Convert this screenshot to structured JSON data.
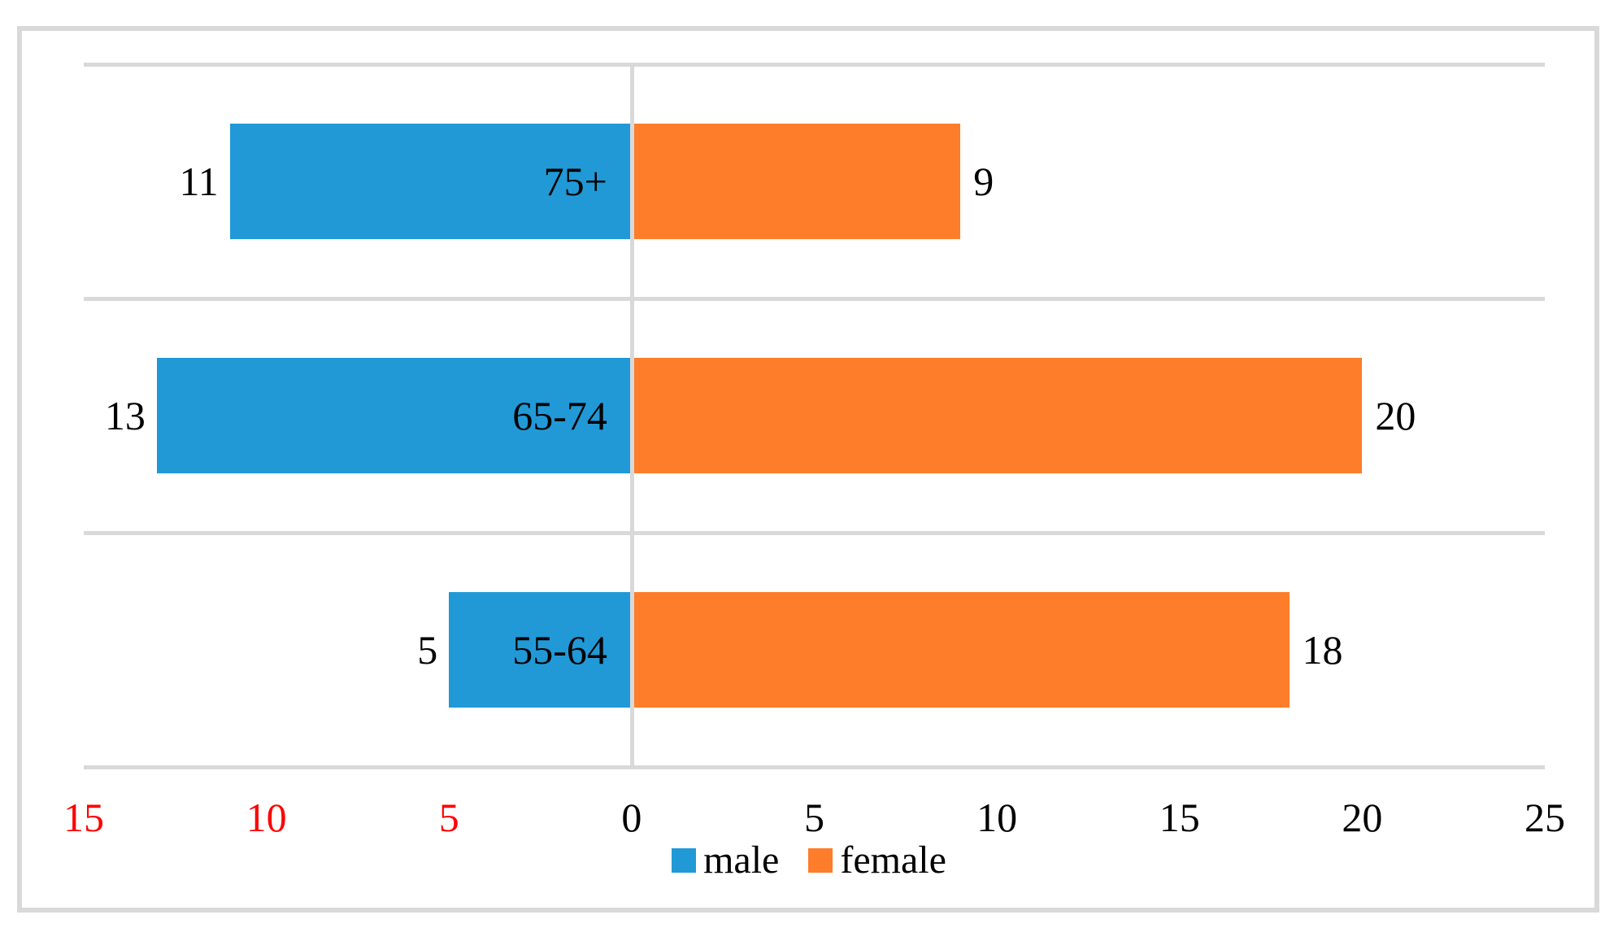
{
  "chart_data": {
    "type": "bar",
    "orientation": "horizontal-diverging",
    "title": "",
    "categories": [
      "75+",
      "65-74",
      "55-64"
    ],
    "series": [
      {
        "name": "male",
        "color": "#2199D7",
        "direction": "left",
        "values": [
          11,
          13,
          5
        ]
      },
      {
        "name": "female",
        "color": "#FD7D2A",
        "direction": "right",
        "values": [
          9,
          20,
          18
        ]
      }
    ],
    "x_axis": {
      "range": [
        -15,
        25
      ],
      "ticks": [
        {
          "label": "15",
          "value": -15,
          "color": "#FF0000"
        },
        {
          "label": "10",
          "value": -10,
          "color": "#FF0000"
        },
        {
          "label": "5",
          "value": -5,
          "color": "#FF0000"
        },
        {
          "label": "0",
          "value": 0,
          "color": "#000000"
        },
        {
          "label": "5",
          "value": 5,
          "color": "#000000"
        },
        {
          "label": "10",
          "value": 10,
          "color": "#000000"
        },
        {
          "label": "15",
          "value": 15,
          "color": "#000000"
        },
        {
          "label": "20",
          "value": 20,
          "color": "#000000"
        },
        {
          "label": "25",
          "value": 25,
          "color": "#000000"
        }
      ]
    },
    "legend": [
      {
        "label": "male",
        "color": "#2199D7"
      },
      {
        "label": "female",
        "color": "#FD7D2A"
      }
    ],
    "grid": true,
    "gridline_color": "#D9D9D9",
    "legend_position": "bottom-center"
  }
}
